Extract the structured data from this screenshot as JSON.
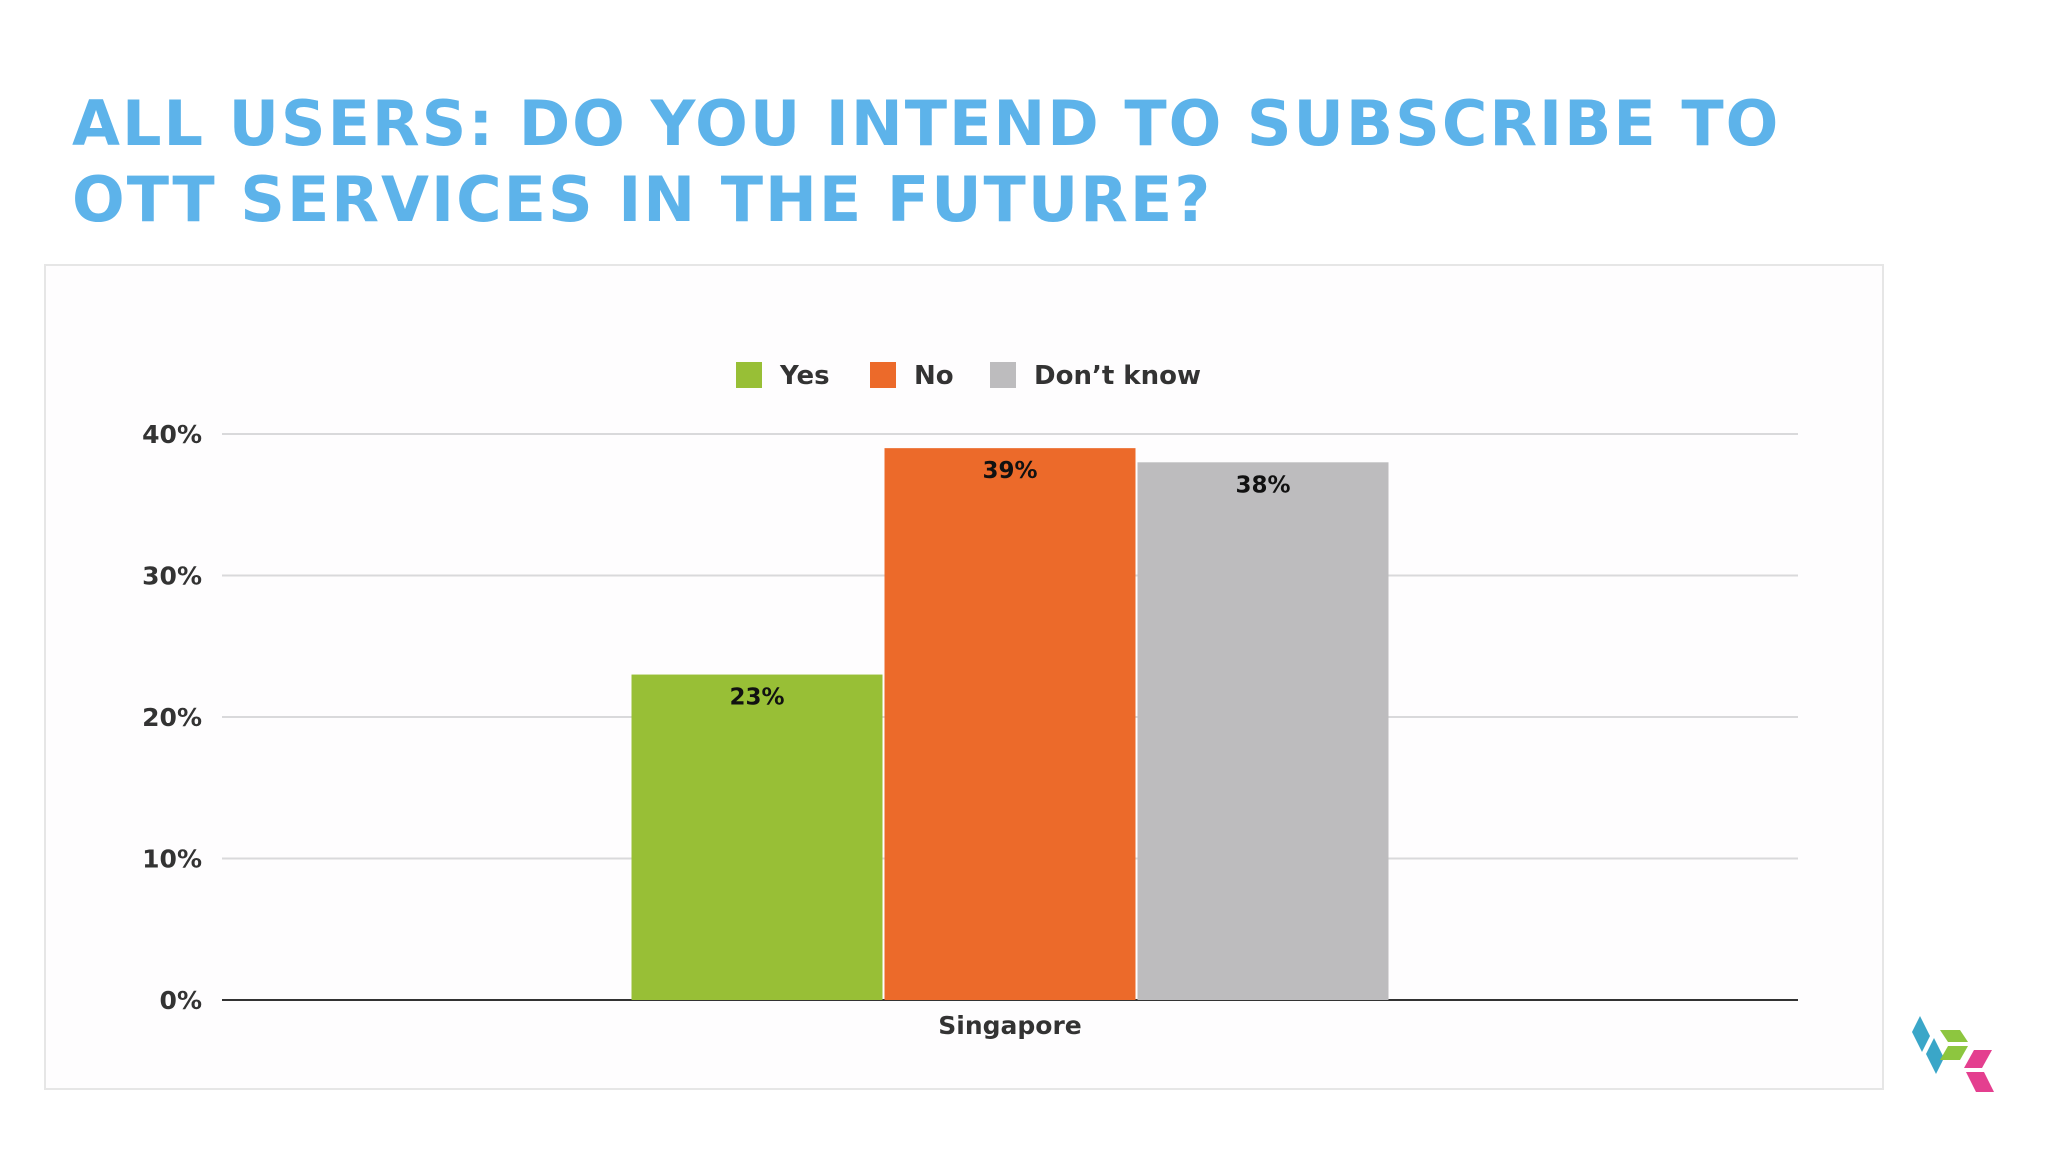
{
  "slide": {
    "title": "ALL USERS: DO YOU INTEND TO SUBSCRIBE TO OTT SERVICES IN THE FUTURE?",
    "title_color": "#5db3ea"
  },
  "logo": {
    "icon": "cube-logo-icon",
    "colors": [
      "#3aa6c8",
      "#8dc63f",
      "#e43f8f"
    ]
  },
  "chart_data": {
    "type": "bar",
    "categories": [
      "Singapore"
    ],
    "series": [
      {
        "name": "Yes",
        "values": [
          23
        ],
        "labels": [
          "23%"
        ],
        "color": "#98bf36"
      },
      {
        "name": "No",
        "values": [
          39
        ],
        "labels": [
          "39%"
        ],
        "color": "#ec6a2a"
      },
      {
        "name": "Don’t know",
        "values": [
          38
        ],
        "labels": [
          "38%"
        ],
        "color": "#bdbcbe"
      }
    ],
    "ylim": [
      0,
      40
    ],
    "yticks": [
      0,
      10,
      20,
      30,
      40
    ],
    "ytick_labels": [
      "0%",
      "10%",
      "20%",
      "30%",
      "40%"
    ],
    "grid": true,
    "legend_position": "top-center",
    "xlabel": "",
    "ylabel": ""
  }
}
